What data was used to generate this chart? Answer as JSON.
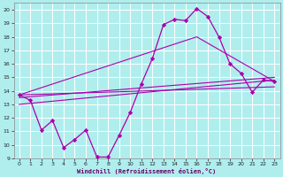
{
  "title": "",
  "xlabel": "Windchill (Refroidissement éolien,°C)",
  "bg_color": "#b0eeee",
  "grid_color": "#ffffff",
  "line_color": "#aa00aa",
  "xlim": [
    -0.5,
    23.5
  ],
  "ylim": [
    9,
    20.5
  ],
  "yticks": [
    9,
    10,
    11,
    12,
    13,
    14,
    15,
    16,
    17,
    18,
    19,
    20
  ],
  "xticks": [
    0,
    1,
    2,
    3,
    4,
    5,
    6,
    7,
    8,
    9,
    10,
    11,
    12,
    13,
    14,
    15,
    16,
    17,
    18,
    19,
    20,
    21,
    22,
    23
  ],
  "main_x": [
    0,
    1,
    2,
    3,
    4,
    5,
    6,
    7,
    8,
    9,
    10,
    11,
    12,
    13,
    14,
    15,
    16,
    17,
    18,
    19,
    20,
    21,
    22,
    23
  ],
  "main_y": [
    13.7,
    13.3,
    11.1,
    11.8,
    9.8,
    10.4,
    11.1,
    9.1,
    9.1,
    10.7,
    12.4,
    14.5,
    16.4,
    18.9,
    19.3,
    19.2,
    20.1,
    19.5,
    18.0,
    16.0,
    15.3,
    13.9,
    14.8,
    14.7
  ],
  "line2_x": [
    0,
    23
  ],
  "line2_y": [
    13.7,
    14.3
  ],
  "line3_x": [
    0,
    23
  ],
  "line3_y": [
    13.5,
    15.0
  ],
  "line4_x": [
    0,
    16,
    23
  ],
  "line4_y": [
    13.7,
    18.0,
    14.7
  ],
  "line5_x": [
    0,
    23
  ],
  "line5_y": [
    13.0,
    14.8
  ]
}
